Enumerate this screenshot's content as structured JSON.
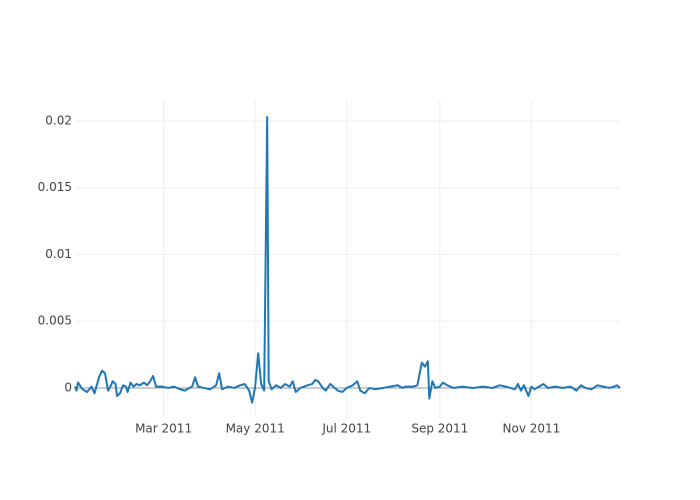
{
  "chart_data": {
    "type": "line",
    "x": [
      0,
      1,
      2,
      5,
      8,
      11,
      13,
      16,
      18,
      20,
      22,
      24,
      25,
      27,
      28,
      30,
      32,
      34,
      35,
      37,
      39,
      41,
      43,
      46,
      48,
      50,
      52,
      54,
      58,
      62,
      66,
      70,
      73,
      78,
      80,
      82,
      86,
      90,
      94,
      96,
      98,
      102,
      106,
      110,
      113,
      116,
      118,
      120,
      122,
      124,
      126,
      128,
      129,
      131,
      134,
      137,
      140,
      143,
      145,
      147,
      150,
      155,
      158,
      160,
      162,
      165,
      167,
      170,
      172,
      175,
      178,
      181,
      185,
      188,
      190,
      193,
      196,
      200,
      205,
      210,
      215,
      218,
      220,
      225,
      228,
      231,
      233,
      235,
      236,
      238,
      240,
      243,
      245,
      248,
      252,
      258,
      265,
      272,
      278,
      283,
      287,
      290,
      293,
      295,
      297,
      299,
      302,
      304,
      306,
      309,
      312,
      315,
      320,
      325,
      330,
      334,
      337,
      340,
      344,
      348,
      352,
      356,
      359,
      361,
      363
    ],
    "series": [
      {
        "color": "#1f77b4",
        "values": [
          0.0001,
          -0.0002,
          0.0004,
          -0.0001,
          -0.0003,
          0.0001,
          -0.0004,
          0.0008,
          0.0013,
          0.0011,
          -0.0002,
          0.0002,
          0.0005,
          0.0003,
          -0.0006,
          -0.0004,
          0.0002,
          0.0001,
          -0.0003,
          0.0004,
          0.0001,
          0.0003,
          0.0002,
          0.0004,
          0.0002,
          0.0005,
          0.0009,
          0.0001,
          0.0001,
          0,
          0.0001,
          -0.0001,
          -0.0002,
          0.0001,
          0.0008,
          0.0001,
          0,
          -0.0001,
          0.0002,
          0.0011,
          -0.0001,
          0.0001,
          0,
          0.0002,
          0.0003,
          -0.0002,
          -0.0011,
          0.0001,
          0.0026,
          0.0003,
          -0.0002,
          0.0203,
          0.0005,
          -0.0001,
          0.0002,
          0,
          0.0003,
          0.0001,
          0.0005,
          -0.0003,
          0,
          0.0002,
          0.0003,
          0.0006,
          0.0005,
          0,
          -0.0002,
          0.0003,
          0.0001,
          -0.0002,
          -0.0003,
          0,
          0.0002,
          0.0005,
          -0.0002,
          -0.0004,
          0,
          -0.0001,
          0,
          0.0001,
          0.0002,
          0,
          0.0001,
          0.0001,
          0.0002,
          0.0019,
          0.0016,
          0.002,
          -0.0008,
          0.0005,
          0,
          0.0001,
          0.0004,
          0.0002,
          0,
          0.0001,
          0,
          0.0001,
          0,
          0.0002,
          0.0001,
          0,
          -0.0001,
          0.0003,
          -0.0002,
          0.0002,
          -0.0006,
          0.0001,
          -0.0001,
          0.0001,
          0.0003,
          0,
          0.0001,
          0,
          0.0001,
          -0.0002,
          0.0002,
          0,
          -0.0001,
          0.0002,
          0.0001,
          0,
          0.0001,
          0.0002,
          0
        ]
      }
    ],
    "xlim": [
      0,
      363
    ],
    "xticks": [
      {
        "value": 59,
        "label": "Mar 2011"
      },
      {
        "value": 120,
        "label": "May 2011"
      },
      {
        "value": 181,
        "label": "Jul 2011"
      },
      {
        "value": 243,
        "label": "Sep 2011"
      },
      {
        "value": 304,
        "label": "Nov 2011"
      }
    ],
    "ylim": [
      -0.00225,
      0.02157
    ],
    "yticks": [
      0,
      0.005,
      0.01,
      0.015,
      0.02
    ],
    "grid": true
  }
}
